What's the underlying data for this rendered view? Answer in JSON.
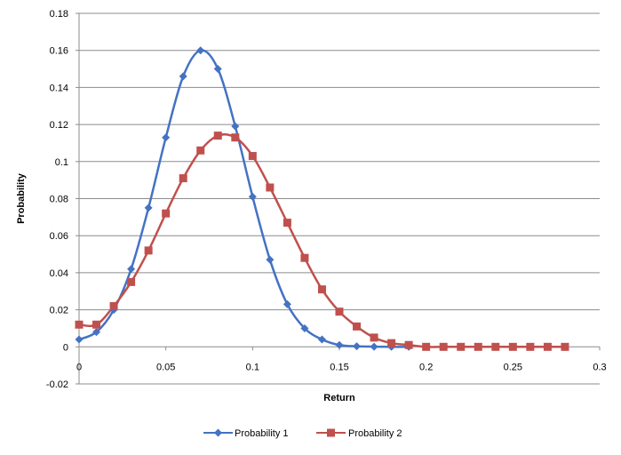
{
  "chart_data": {
    "type": "line",
    "title": "",
    "xlabel": "Return",
    "ylabel": "Probability",
    "xlim": [
      0,
      0.3
    ],
    "ylim": [
      -0.02,
      0.18
    ],
    "x_ticks": [
      "0",
      "0.05",
      "0.1",
      "0.15",
      "0.2",
      "0.25",
      "0.3"
    ],
    "x_tick_values": [
      0,
      0.05,
      0.1,
      0.15,
      0.2,
      0.25,
      0.3
    ],
    "y_ticks": [
      "-0.02",
      "0",
      "0.02",
      "0.04",
      "0.06",
      "0.08",
      "0.1",
      "0.12",
      "0.14",
      "0.16",
      "0.18"
    ],
    "y_tick_values": [
      -0.02,
      0,
      0.02,
      0.04,
      0.06,
      0.08,
      0.1,
      0.12,
      0.14,
      0.16,
      0.18
    ],
    "grid": "horizontal",
    "legend_position": "bottom",
    "series": [
      {
        "name": "Probability 1",
        "color": "#4472C4",
        "marker": "diamond",
        "x": [
          0,
          0.01,
          0.02,
          0.03,
          0.04,
          0.05,
          0.06,
          0.07,
          0.08,
          0.09,
          0.1,
          0.11,
          0.12,
          0.13,
          0.14,
          0.15,
          0.16,
          0.17,
          0.18,
          0.19
        ],
        "values": [
          0.004,
          0.008,
          0.02,
          0.042,
          0.075,
          0.113,
          0.146,
          0.16,
          0.15,
          0.119,
          0.081,
          0.047,
          0.023,
          0.01,
          0.004,
          0.001,
          0.0003,
          0.0001,
          0.0,
          0.0
        ]
      },
      {
        "name": "Probability 2",
        "color": "#C0504D",
        "marker": "square",
        "x": [
          0,
          0.01,
          0.02,
          0.03,
          0.04,
          0.05,
          0.06,
          0.07,
          0.08,
          0.09,
          0.1,
          0.11,
          0.12,
          0.13,
          0.14,
          0.15,
          0.16,
          0.17,
          0.18,
          0.19,
          0.2,
          0.21,
          0.22,
          0.23,
          0.24,
          0.25,
          0.26,
          0.27,
          0.28
        ],
        "values": [
          0.012,
          0.012,
          0.022,
          0.035,
          0.052,
          0.072,
          0.091,
          0.106,
          0.114,
          0.113,
          0.103,
          0.086,
          0.067,
          0.048,
          0.031,
          0.019,
          0.011,
          0.005,
          0.002,
          0.001,
          0.0,
          0.0,
          0.0,
          0.0,
          0.0,
          0.0,
          0.0,
          0.0,
          0.0
        ]
      }
    ]
  }
}
